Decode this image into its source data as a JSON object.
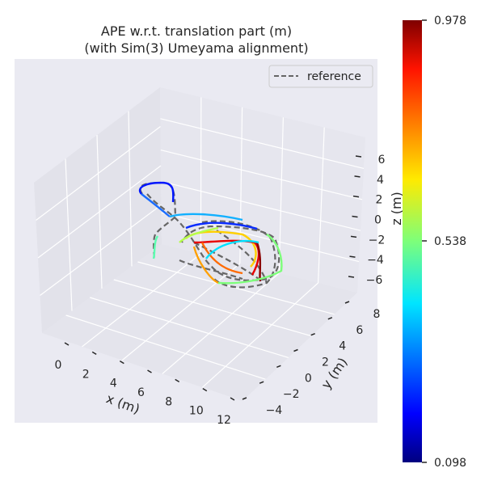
{
  "chart_data": {
    "type": "line",
    "projection": "3d",
    "title": "APE w.r.t. translation part (m)",
    "subtitle": "(with Sim(3) Umeyama alignment)",
    "xlabel": "x (m)",
    "ylabel": "y (m)",
    "zlabel": "z (m)",
    "x_ticks": [
      "0",
      "2",
      "4",
      "6",
      "8",
      "10",
      "12"
    ],
    "y_ticks": [
      "−4",
      "−2",
      "0",
      "2",
      "4",
      "6",
      "8"
    ],
    "z_ticks": [
      "6",
      "4",
      "2",
      "0",
      "−2",
      "−4",
      "−6"
    ],
    "grid": true,
    "legend": {
      "placement": "top-right",
      "entries": [
        "reference"
      ]
    },
    "series": [
      {
        "name": "reference",
        "style": "dashed",
        "color": "#666666"
      },
      {
        "style": "solid",
        "colormap": "jet",
        "colored_by": "APE"
      }
    ],
    "colorbar": {
      "min": 0.098,
      "max": 0.978,
      "ticks": [
        "0.978",
        "0.538",
        "0.098"
      ],
      "colormap": "jet"
    },
    "colors": {
      "pane": "#eaeaf2",
      "grid": "#ffffff",
      "reference": "#666666"
    }
  }
}
